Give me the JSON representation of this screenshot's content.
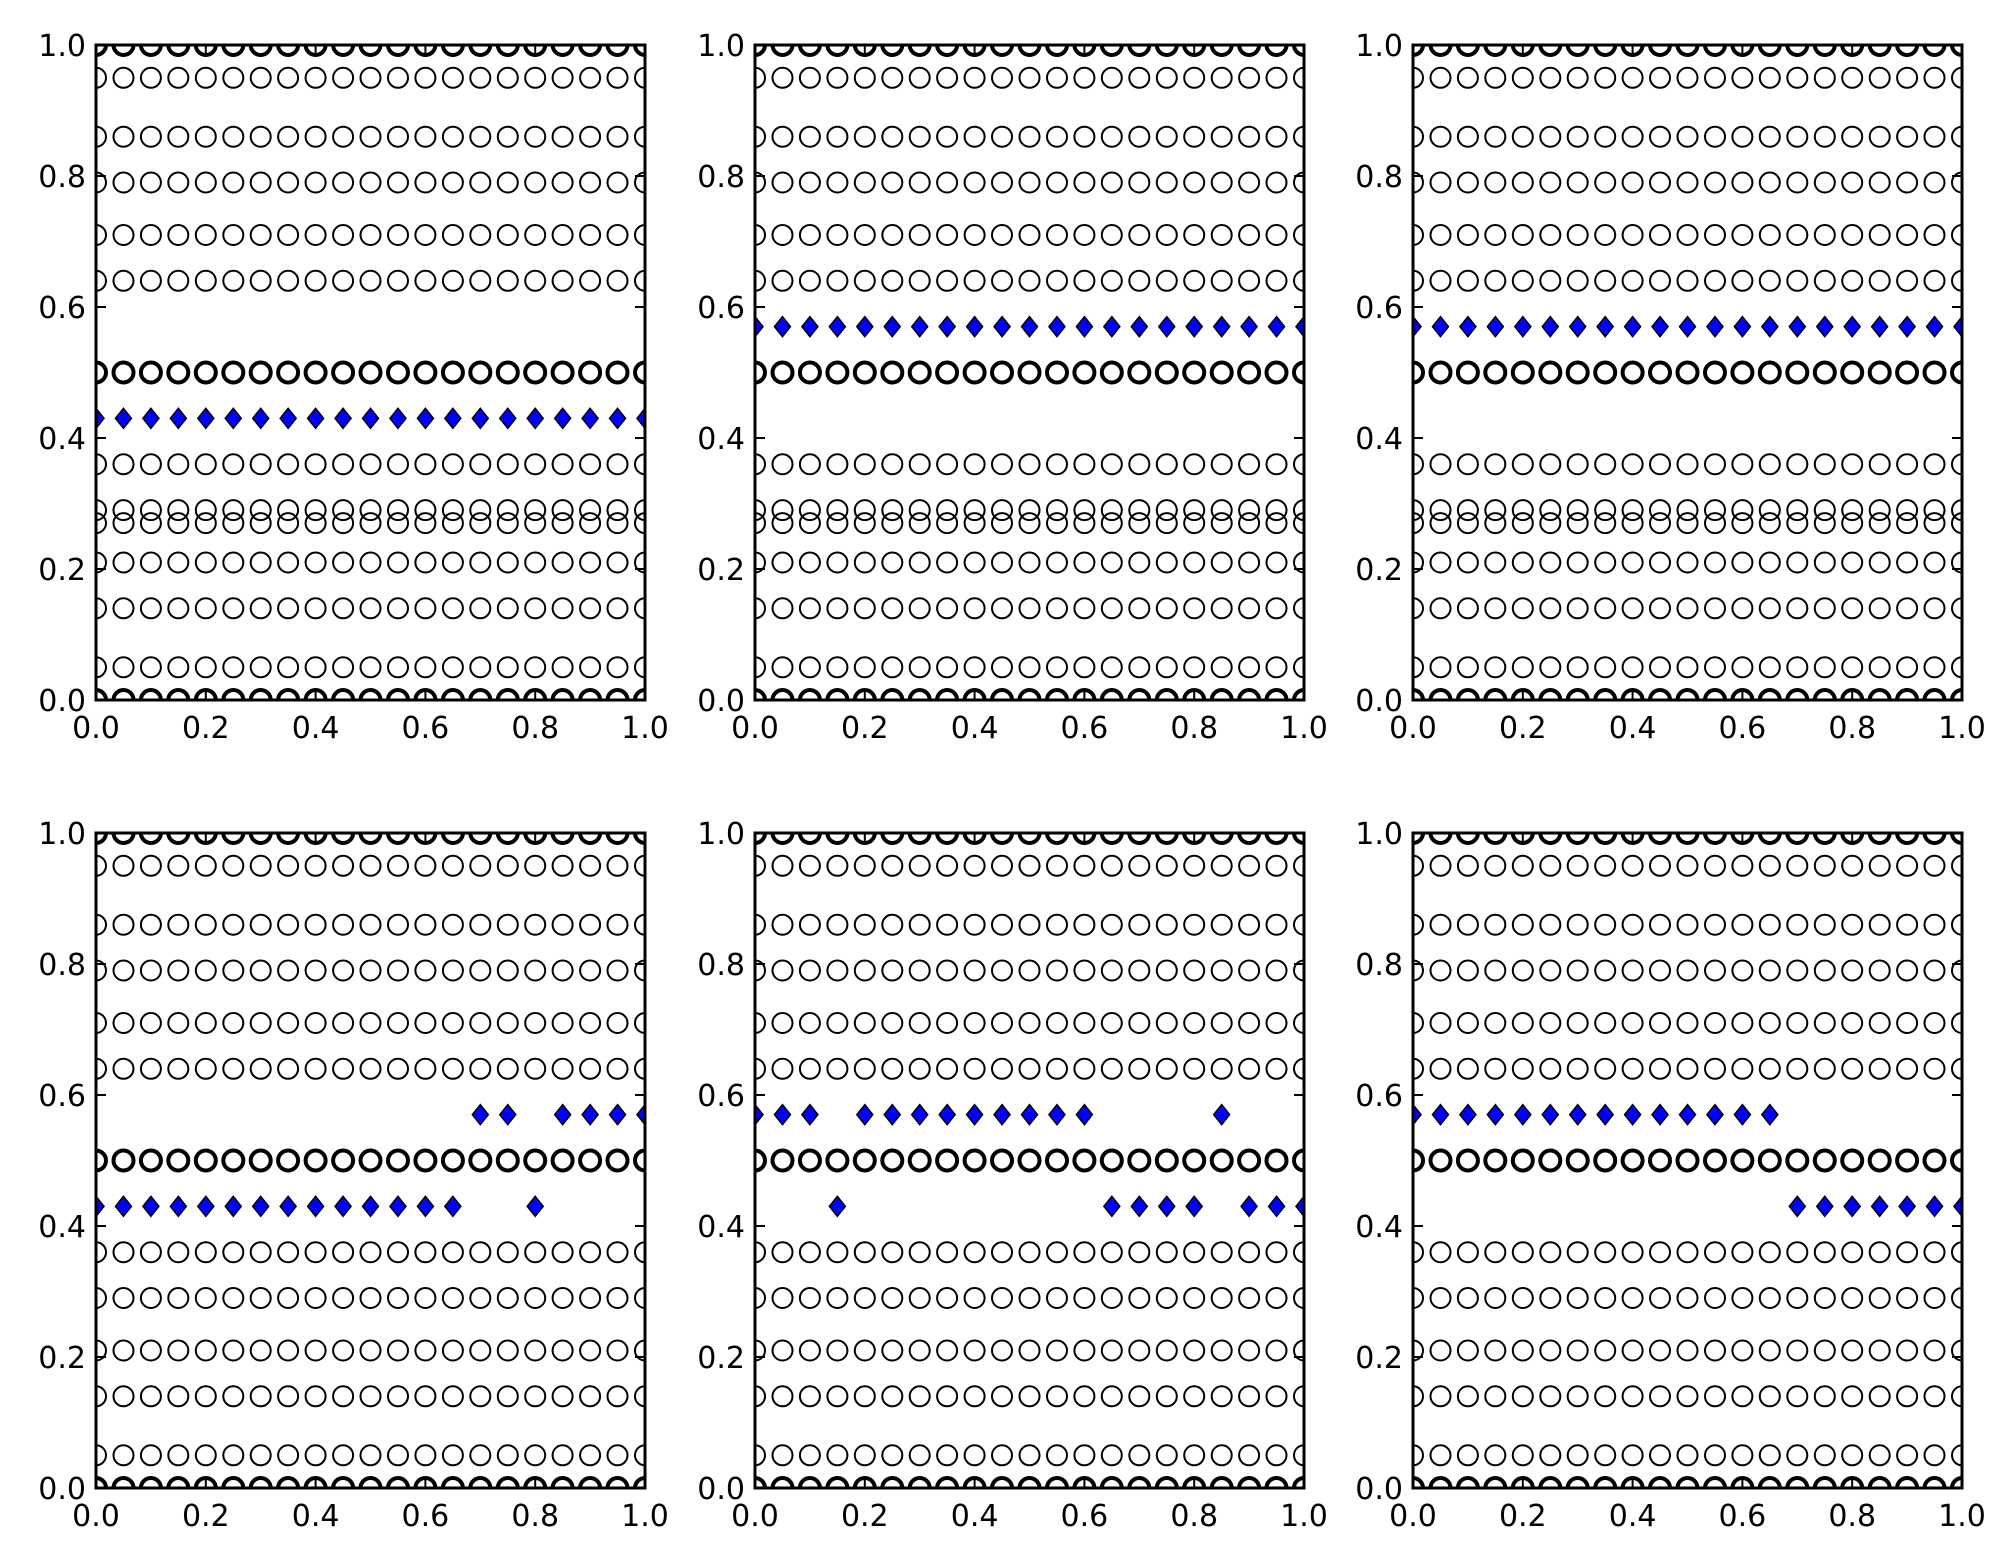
{
  "colors": {
    "background": "#ffffff",
    "circle_edge": "#000000",
    "diamond_fill": "#0000ff",
    "diamond_edge": "#000000",
    "axes": "#000000"
  },
  "chart_data": [
    {
      "type": "scatter",
      "title": "",
      "xlabel": "",
      "ylabel": "",
      "xlim": [
        0,
        1
      ],
      "ylim": [
        0,
        1
      ],
      "xticks": [
        "0.0",
        "0.2",
        "0.4",
        "0.6",
        "0.8",
        "1.0"
      ],
      "yticks": [
        "0.0",
        "0.2",
        "0.4",
        "0.6",
        "0.8",
        "1.0"
      ],
      "grid": false,
      "x": [
        0,
        0.05,
        0.1,
        0.15,
        0.2,
        0.25,
        0.3,
        0.35,
        0.4,
        0.45,
        0.5,
        0.55,
        0.6,
        0.65,
        0.7,
        0.75,
        0.8,
        0.85,
        0.9,
        0.95,
        1
      ],
      "series": [
        {
          "marker": "circle",
          "y_levels": [
            0.0,
            0.05,
            0.14,
            0.21,
            0.27,
            0.29,
            0.36,
            0.5,
            0.64,
            0.71,
            0.79,
            0.86,
            0.95,
            1.0
          ]
        },
        {
          "marker": "diamond",
          "y": [
            0.43,
            0.43,
            0.43,
            0.43,
            0.43,
            0.43,
            0.43,
            0.43,
            0.43,
            0.43,
            0.43,
            0.43,
            0.43,
            0.43,
            0.43,
            0.43,
            0.43,
            0.43,
            0.43,
            0.43,
            0.43
          ]
        }
      ]
    },
    {
      "type": "scatter",
      "title": "",
      "xlabel": "",
      "ylabel": "",
      "xlim": [
        0,
        1
      ],
      "ylim": [
        0,
        1
      ],
      "xticks": [
        "0.0",
        "0.2",
        "0.4",
        "0.6",
        "0.8",
        "1.0"
      ],
      "yticks": [
        "0.0",
        "0.2",
        "0.4",
        "0.6",
        "0.8",
        "1.0"
      ],
      "grid": false,
      "x": [
        0,
        0.05,
        0.1,
        0.15,
        0.2,
        0.25,
        0.3,
        0.35,
        0.4,
        0.45,
        0.5,
        0.55,
        0.6,
        0.65,
        0.7,
        0.75,
        0.8,
        0.85,
        0.9,
        0.95,
        1
      ],
      "series": [
        {
          "marker": "circle",
          "y_levels": [
            0.0,
            0.05,
            0.14,
            0.21,
            0.27,
            0.29,
            0.36,
            0.5,
            0.64,
            0.71,
            0.79,
            0.86,
            0.95,
            1.0
          ]
        },
        {
          "marker": "diamond",
          "y": [
            0.57,
            0.57,
            0.57,
            0.57,
            0.57,
            0.57,
            0.57,
            0.57,
            0.57,
            0.57,
            0.57,
            0.57,
            0.57,
            0.57,
            0.57,
            0.57,
            0.57,
            0.57,
            0.57,
            0.57,
            0.57
          ]
        }
      ]
    },
    {
      "type": "scatter",
      "title": "",
      "xlabel": "",
      "ylabel": "",
      "xlim": [
        0,
        1
      ],
      "ylim": [
        0,
        1
      ],
      "xticks": [
        "0.0",
        "0.2",
        "0.4",
        "0.6",
        "0.8",
        "1.0"
      ],
      "yticks": [
        "0.0",
        "0.2",
        "0.4",
        "0.6",
        "0.8",
        "1.0"
      ],
      "grid": false,
      "x": [
        0,
        0.05,
        0.1,
        0.15,
        0.2,
        0.25,
        0.3,
        0.35,
        0.4,
        0.45,
        0.5,
        0.55,
        0.6,
        0.65,
        0.7,
        0.75,
        0.8,
        0.85,
        0.9,
        0.95,
        1
      ],
      "series": [
        {
          "marker": "circle",
          "y_levels": [
            0.0,
            0.05,
            0.14,
            0.21,
            0.27,
            0.29,
            0.36,
            0.5,
            0.64,
            0.71,
            0.79,
            0.86,
            0.95,
            1.0
          ]
        },
        {
          "marker": "diamond",
          "y": [
            0.57,
            0.57,
            0.57,
            0.57,
            0.57,
            0.57,
            0.57,
            0.57,
            0.57,
            0.57,
            0.57,
            0.57,
            0.57,
            0.57,
            0.57,
            0.57,
            0.57,
            0.57,
            0.57,
            0.57,
            0.57
          ]
        }
      ]
    },
    {
      "type": "scatter",
      "title": "",
      "xlabel": "",
      "ylabel": "",
      "xlim": [
        0,
        1
      ],
      "ylim": [
        0,
        1
      ],
      "xticks": [
        "0.0",
        "0.2",
        "0.4",
        "0.6",
        "0.8",
        "1.0"
      ],
      "yticks": [
        "0.0",
        "0.2",
        "0.4",
        "0.6",
        "0.8",
        "1.0"
      ],
      "grid": false,
      "x": [
        0,
        0.05,
        0.1,
        0.15,
        0.2,
        0.25,
        0.3,
        0.35,
        0.4,
        0.45,
        0.5,
        0.55,
        0.6,
        0.65,
        0.7,
        0.75,
        0.8,
        0.85,
        0.9,
        0.95,
        1
      ],
      "series": [
        {
          "marker": "circle",
          "y_levels": [
            0.0,
            0.05,
            0.14,
            0.21,
            0.29,
            0.36,
            0.5,
            0.64,
            0.71,
            0.79,
            0.86,
            0.95,
            1.0
          ]
        },
        {
          "marker": "diamond",
          "y": [
            0.43,
            0.43,
            0.43,
            0.43,
            0.43,
            0.43,
            0.43,
            0.43,
            0.43,
            0.43,
            0.43,
            0.43,
            0.43,
            0.43,
            0.57,
            0.57,
            0.43,
            0.57,
            0.57,
            0.57,
            0.57
          ]
        }
      ]
    },
    {
      "type": "scatter",
      "title": "",
      "xlabel": "",
      "ylabel": "",
      "xlim": [
        0,
        1
      ],
      "ylim": [
        0,
        1
      ],
      "xticks": [
        "0.0",
        "0.2",
        "0.4",
        "0.6",
        "0.8",
        "1.0"
      ],
      "yticks": [
        "0.0",
        "0.2",
        "0.4",
        "0.6",
        "0.8",
        "1.0"
      ],
      "grid": false,
      "x": [
        0,
        0.05,
        0.1,
        0.15,
        0.2,
        0.25,
        0.3,
        0.35,
        0.4,
        0.45,
        0.5,
        0.55,
        0.6,
        0.65,
        0.7,
        0.75,
        0.8,
        0.85,
        0.9,
        0.95,
        1
      ],
      "series": [
        {
          "marker": "circle",
          "y_levels": [
            0.0,
            0.05,
            0.14,
            0.21,
            0.29,
            0.36,
            0.5,
            0.64,
            0.71,
            0.79,
            0.86,
            0.95,
            1.0
          ]
        },
        {
          "marker": "diamond",
          "y": [
            0.57,
            0.57,
            0.57,
            0.43,
            0.57,
            0.57,
            0.57,
            0.57,
            0.57,
            0.57,
            0.57,
            0.57,
            0.57,
            0.43,
            0.43,
            0.43,
            0.43,
            0.57,
            0.43,
            0.43,
            0.43
          ]
        }
      ]
    },
    {
      "type": "scatter",
      "title": "",
      "xlabel": "",
      "ylabel": "",
      "xlim": [
        0,
        1
      ],
      "ylim": [
        0,
        1
      ],
      "xticks": [
        "0.0",
        "0.2",
        "0.4",
        "0.6",
        "0.8",
        "1.0"
      ],
      "yticks": [
        "0.0",
        "0.2",
        "0.4",
        "0.6",
        "0.8",
        "1.0"
      ],
      "grid": false,
      "x": [
        0,
        0.05,
        0.1,
        0.15,
        0.2,
        0.25,
        0.3,
        0.35,
        0.4,
        0.45,
        0.5,
        0.55,
        0.6,
        0.65,
        0.7,
        0.75,
        0.8,
        0.85,
        0.9,
        0.95,
        1
      ],
      "series": [
        {
          "marker": "circle",
          "y_levels": [
            0.0,
            0.05,
            0.14,
            0.21,
            0.29,
            0.36,
            0.5,
            0.64,
            0.71,
            0.79,
            0.86,
            0.95,
            1.0
          ]
        },
        {
          "marker": "diamond",
          "y": [
            0.57,
            0.57,
            0.57,
            0.57,
            0.57,
            0.57,
            0.57,
            0.57,
            0.57,
            0.57,
            0.57,
            0.57,
            0.57,
            0.57,
            0.43,
            0.43,
            0.43,
            0.43,
            0.43,
            0.43,
            0.43
          ]
        }
      ]
    }
  ]
}
